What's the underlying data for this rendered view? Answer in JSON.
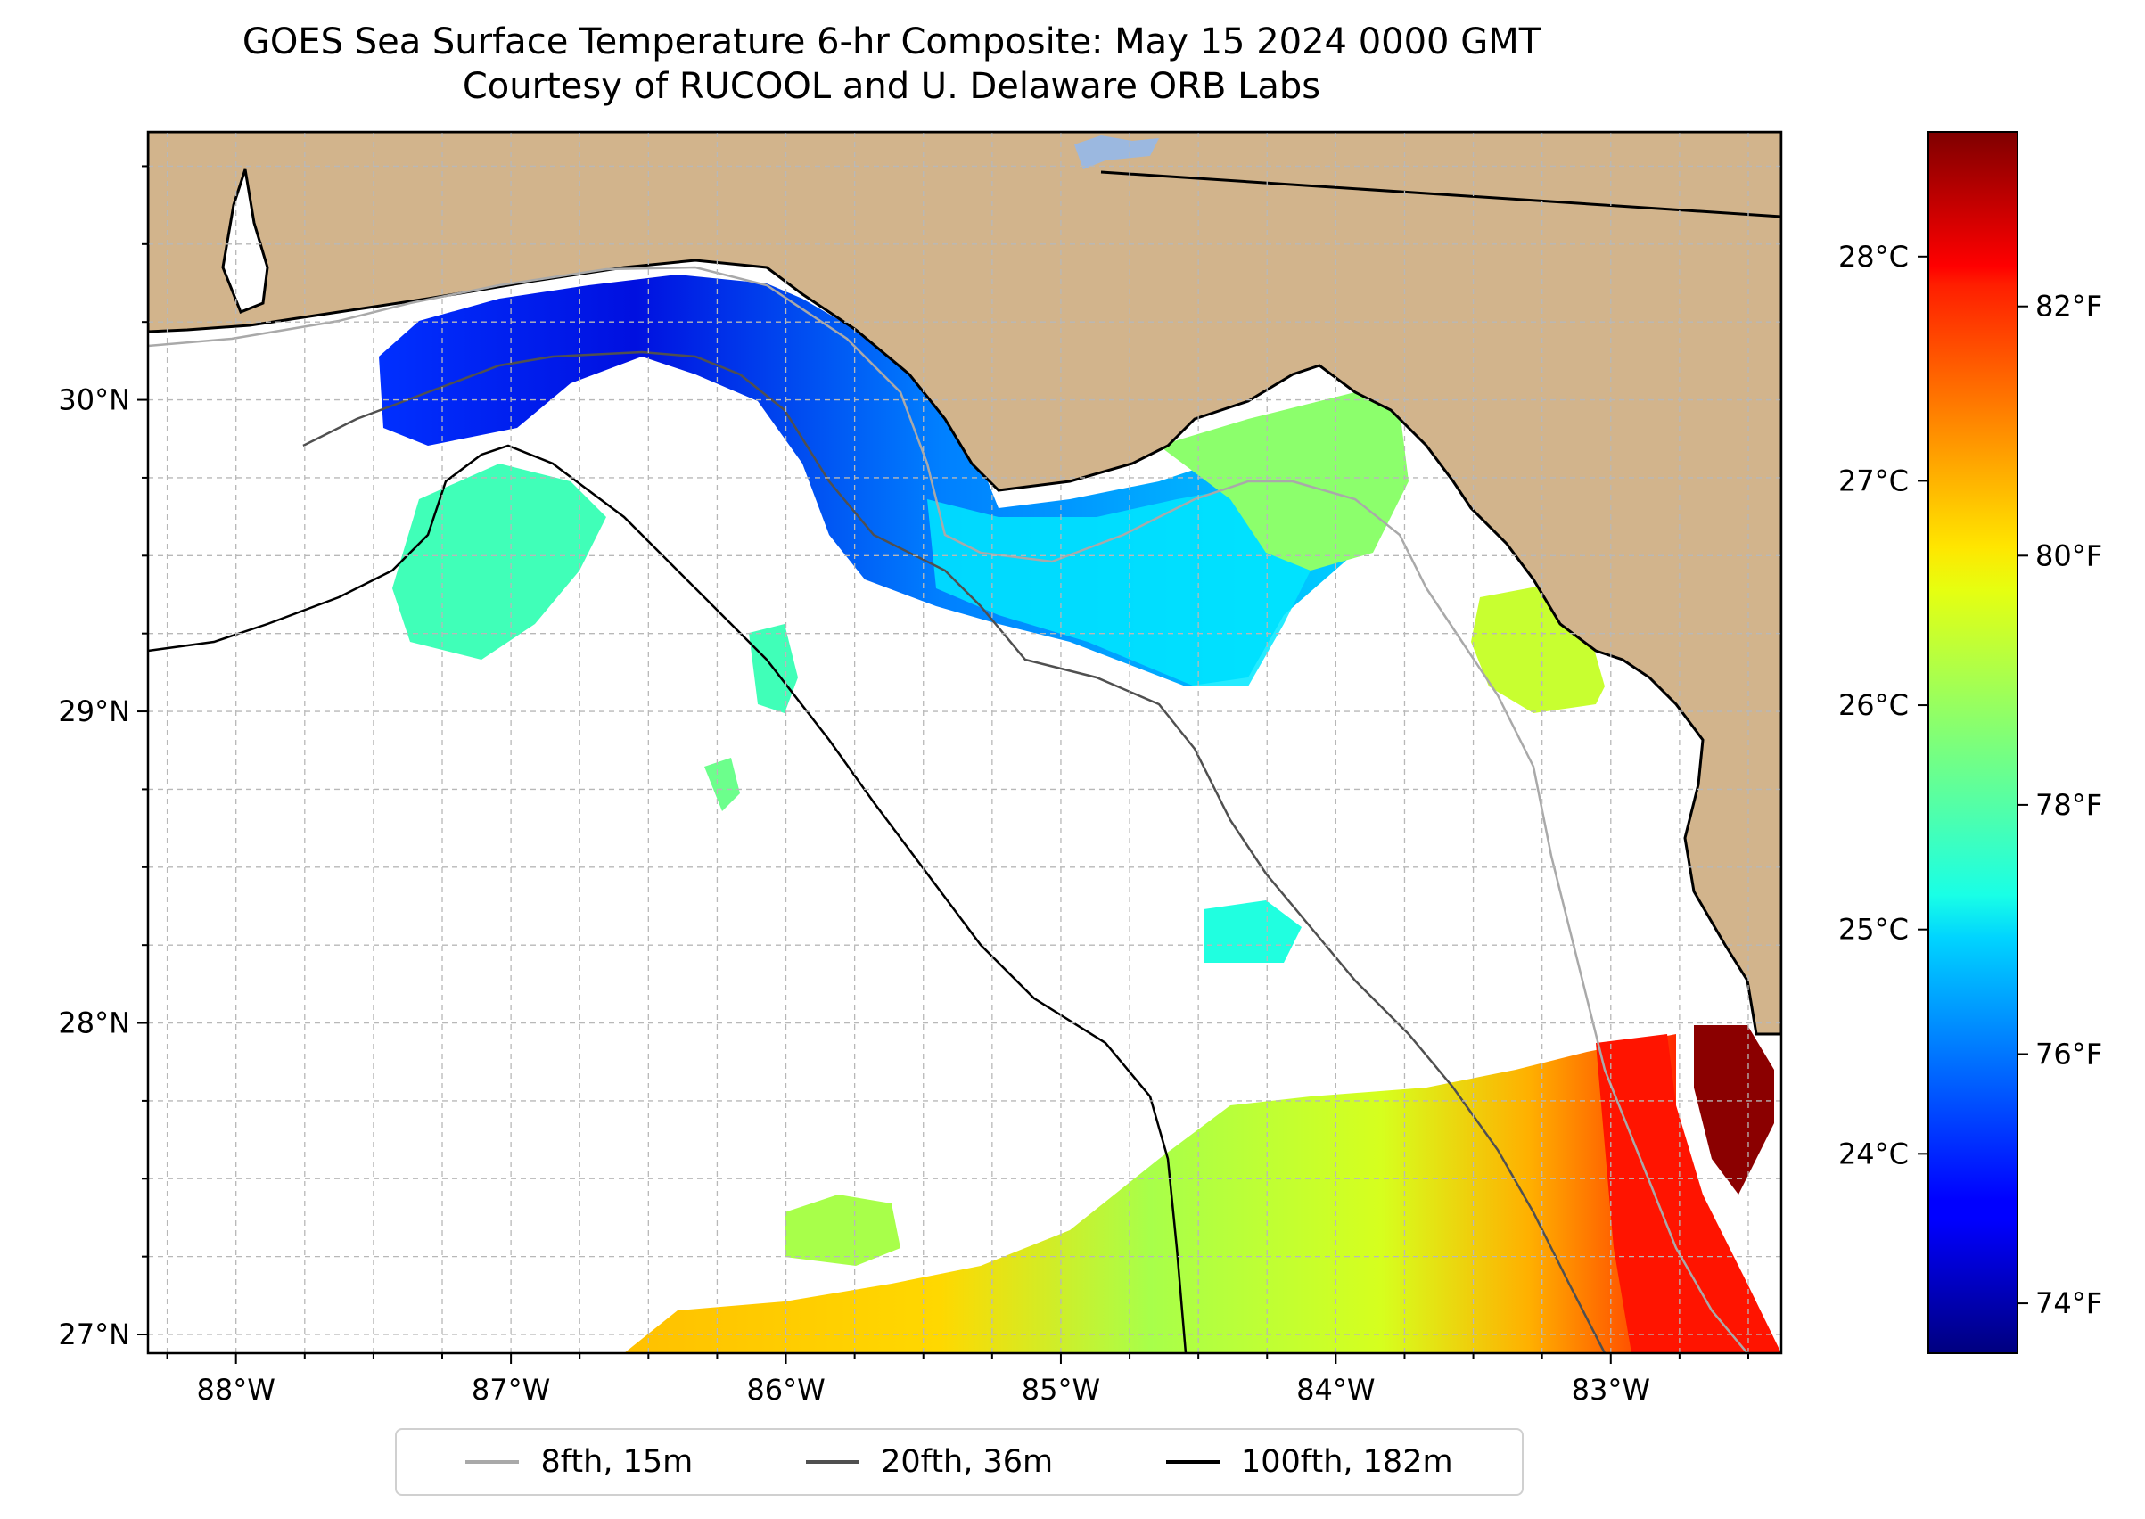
{
  "title": {
    "line1": "GOES Sea Surface Temperature 6-hr Composite: May 15 2024 0000 GMT",
    "line2": "Courtesy of RUCOOL and U. Delaware ORB Labs"
  },
  "map": {
    "lon_range": [
      -88.32,
      -82.38
    ],
    "lat_range": [
      26.94,
      30.86
    ],
    "lon_ticks": [
      {
        "value": -88,
        "label": "88°W"
      },
      {
        "value": -87,
        "label": "87°W"
      },
      {
        "value": -86,
        "label": "86°W"
      },
      {
        "value": -85,
        "label": "85°W"
      },
      {
        "value": -84,
        "label": "84°W"
      },
      {
        "value": -83,
        "label": "83°W"
      }
    ],
    "lat_ticks": [
      {
        "value": 27,
        "label": "27°N"
      },
      {
        "value": 28,
        "label": "28°N"
      },
      {
        "value": 29,
        "label": "29°N"
      },
      {
        "value": 30,
        "label": "30°N"
      }
    ],
    "grid": true,
    "colors": {
      "land": "#d2b48c",
      "ocean": "#ffffff",
      "coast": "#000000",
      "lake": "#9bb8e0"
    }
  },
  "colorbar": {
    "colormap": "jet",
    "range_f": [
      73.6,
      83.4
    ],
    "fahrenheit_ticks": [
      {
        "value": 74,
        "label": "74°F"
      },
      {
        "value": 76,
        "label": "76°F"
      },
      {
        "value": 78,
        "label": "78°F"
      },
      {
        "value": 80,
        "label": "80°F"
      },
      {
        "value": 82,
        "label": "82°F"
      }
    ],
    "celsius_ticks": [
      {
        "value": 24,
        "label": "24°C"
      },
      {
        "value": 25,
        "label": "25°C"
      },
      {
        "value": 26,
        "label": "26°C"
      },
      {
        "value": 27,
        "label": "27°C"
      },
      {
        "value": 28,
        "label": "28°C"
      }
    ]
  },
  "legend": {
    "items": [
      {
        "label": "8fth, 15m",
        "color": "#a9a9a9"
      },
      {
        "label": "20fth, 36m",
        "color": "#505050"
      },
      {
        "label": "100fth, 182m",
        "color": "#000000"
      }
    ]
  }
}
